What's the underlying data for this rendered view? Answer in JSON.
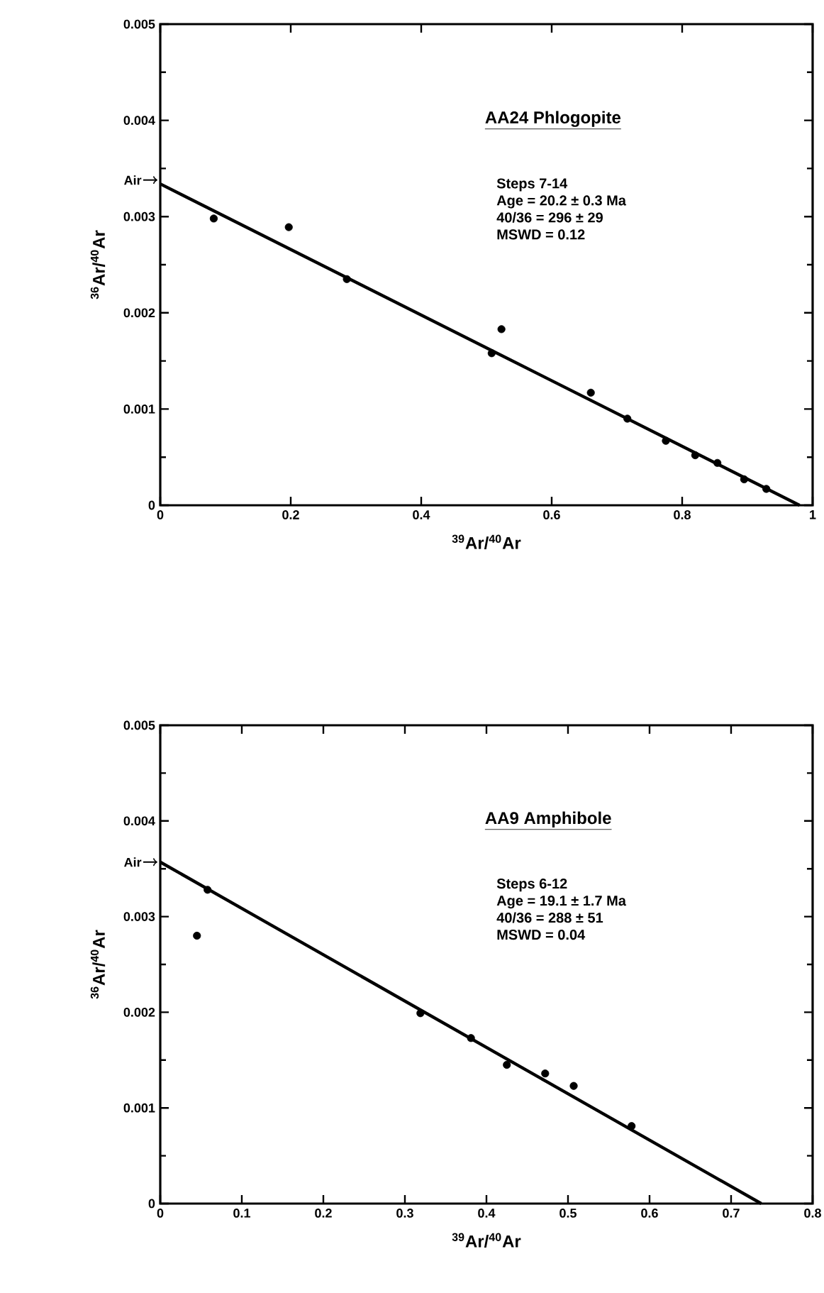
{
  "chart_data": [
    {
      "type": "scatter",
      "title": "AA24  Phlogopite",
      "xlabel": "$^{39}$Ar/$^{40}$Ar",
      "ylabel": "$^{36}$Ar/$^{40}$Ar",
      "annotations": [
        "Steps  7-14",
        "Age = 20.2 ± 0.3 Ma",
        "40/36 = 296 ± 29",
        "MSWD = 0.12",
        {
          "text": "Air",
          "x": 0,
          "y": 0.00338
        }
      ],
      "xlim": [
        0,
        1
      ],
      "ylim": [
        0,
        0.005
      ],
      "xticks": [
        0,
        0.2,
        0.4,
        0.6,
        0.8,
        1
      ],
      "yticks": [
        0,
        0.001,
        0.002,
        0.003,
        0.004,
        0.005
      ],
      "series": [
        {
          "marker": "circle",
          "color": "#000000",
          "x": [
            0.082,
            0.197,
            0.286,
            0.508,
            0.523,
            0.66,
            0.716,
            0.775,
            0.82,
            0.854,
            0.895,
            0.929
          ],
          "values": [
            0.00298,
            0.00289,
            0.00235,
            0.00158,
            0.00183,
            0.00117,
            0.0009,
            0.00067,
            0.00052,
            0.00044,
            0.00027,
            0.00017
          ]
        },
        {
          "type": "line",
          "color": "#000000",
          "x": [
            0,
            0.98
          ],
          "values": [
            0.00334,
            0
          ]
        }
      ]
    },
    {
      "type": "scatter",
      "title": "AA9  Amphibole",
      "xlabel": "$^{39}$Ar/$^{40}$Ar",
      "ylabel": "$^{36}$Ar/$^{40}$Ar",
      "annotations": [
        "Steps  6-12",
        "Age = 19.1 ± 1.7 Ma",
        "40/36 = 288 ± 51",
        "MSWD = 0.04",
        {
          "text": "Air",
          "x": 0,
          "y": 0.00357
        }
      ],
      "xlim": [
        0,
        0.8
      ],
      "ylim": [
        0,
        0.005
      ],
      "xticks": [
        0,
        0.1,
        0.2,
        0.3,
        0.4,
        0.5,
        0.6,
        0.7,
        0.8
      ],
      "yticks": [
        0,
        0.001,
        0.002,
        0.003,
        0.004,
        0.005
      ],
      "series": [
        {
          "marker": "circle",
          "color": "#000000",
          "x": [
            0.045,
            0.058,
            0.319,
            0.381,
            0.425,
            0.472,
            0.507,
            0.578
          ],
          "values": [
            0.0028,
            0.00328,
            0.00199,
            0.00173,
            0.00145,
            0.00136,
            0.00123,
            0.00081
          ]
        },
        {
          "type": "line",
          "color": "#000000",
          "x": [
            0,
            0.737
          ],
          "values": [
            0.00357,
            0
          ]
        }
      ]
    }
  ]
}
